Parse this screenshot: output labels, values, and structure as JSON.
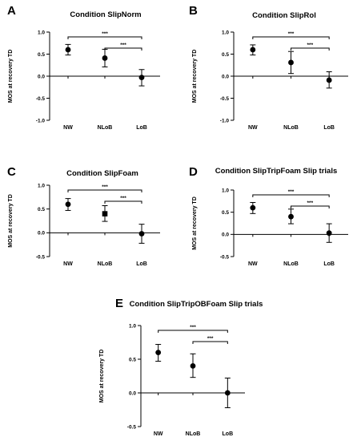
{
  "chart_data": [
    {
      "type": "scatter",
      "panel_letter": "A",
      "title": "Condition SlipNorm",
      "ylabel": "MOS at recovery TD",
      "categories": [
        "NW",
        "NLoB",
        "LoB"
      ],
      "ylim": [
        -1.0,
        1.0
      ],
      "yticks": [
        "1.0",
        "0.5",
        "0.0",
        "-0.5",
        "-1.0"
      ],
      "values": [
        0.6,
        0.41,
        -0.03
      ],
      "err_low": [
        0.48,
        0.21,
        -0.22
      ],
      "err_high": [
        0.72,
        0.61,
        0.15
      ],
      "markers": [
        "circle",
        "circle",
        "circle"
      ],
      "significance": [
        {
          "from": "NW",
          "to": "LoB",
          "label": "***"
        },
        {
          "from": "NLoB",
          "to": "LoB",
          "label": "***"
        }
      ]
    },
    {
      "type": "scatter",
      "panel_letter": "B",
      "title": "Condition SlipRol",
      "ylabel": "MOS at recovery TD",
      "categories": [
        "NW",
        "NLoB",
        "LoB"
      ],
      "ylim": [
        -1.0,
        1.0
      ],
      "yticks": [
        "1.0",
        "0.5",
        "0.0",
        "-0.5",
        "-1.0"
      ],
      "values": [
        0.6,
        0.31,
        -0.09
      ],
      "err_low": [
        0.48,
        0.06,
        -0.27
      ],
      "err_high": [
        0.71,
        0.56,
        0.1
      ],
      "markers": [
        "circle",
        "circle",
        "circle"
      ],
      "significance": [
        {
          "from": "NW",
          "to": "LoB",
          "label": "***"
        },
        {
          "from": "NLoB",
          "to": "LoB",
          "label": "***"
        }
      ]
    },
    {
      "type": "scatter",
      "panel_letter": "C",
      "title": "Condition SlipFoam",
      "ylabel": "MOS at recovery TD",
      "categories": [
        "NW",
        "NLoB",
        "LoB"
      ],
      "ylim": [
        -0.5,
        1.0
      ],
      "yticks": [
        "1.0",
        "0.5",
        "0.0",
        "-0.5"
      ],
      "values": [
        0.6,
        0.4,
        -0.02
      ],
      "err_low": [
        0.47,
        0.24,
        -0.22
      ],
      "err_high": [
        0.72,
        0.57,
        0.18
      ],
      "markers": [
        "circle",
        "square",
        "circle"
      ],
      "significance": [
        {
          "from": "NW",
          "to": "LoB",
          "label": "***"
        },
        {
          "from": "NLoB",
          "to": "LoB",
          "label": "***"
        }
      ]
    },
    {
      "type": "scatter",
      "panel_letter": "D",
      "title": "Condition SlipTripFoam Slip trials",
      "ylabel": "MOS at recovery TD",
      "categories": [
        "NW",
        "NLoB",
        "LoB"
      ],
      "ylim": [
        -0.5,
        1.0
      ],
      "yticks": [
        "1.0",
        "0.5",
        "0.0",
        "-0.5"
      ],
      "values": [
        0.6,
        0.4,
        0.03
      ],
      "err_low": [
        0.47,
        0.24,
        -0.18
      ],
      "err_high": [
        0.72,
        0.57,
        0.24
      ],
      "markers": [
        "circle",
        "circle",
        "circle"
      ],
      "significance": [
        {
          "from": "NW",
          "to": "LoB",
          "label": "***"
        },
        {
          "from": "NLoB",
          "to": "LoB",
          "label": "***"
        }
      ]
    },
    {
      "type": "scatter",
      "panel_letter": "E",
      "title": "Condition SlipTripOBFoam Slip trials",
      "ylabel": "MOS at recovery TD",
      "categories": [
        "NW",
        "NLoB",
        "LoB"
      ],
      "ylim": [
        -0.5,
        1.0
      ],
      "yticks": [
        "1.0",
        "0.5",
        "0.0",
        "-0.5"
      ],
      "values": [
        0.6,
        0.4,
        0.0
      ],
      "err_low": [
        0.47,
        0.23,
        -0.22
      ],
      "err_high": [
        0.72,
        0.58,
        0.22
      ],
      "markers": [
        "circle",
        "circle",
        "circle"
      ],
      "significance": [
        {
          "from": "NW",
          "to": "LoB",
          "label": "***"
        },
        {
          "from": "NLoB",
          "to": "LoB",
          "label": "***"
        }
      ]
    }
  ]
}
